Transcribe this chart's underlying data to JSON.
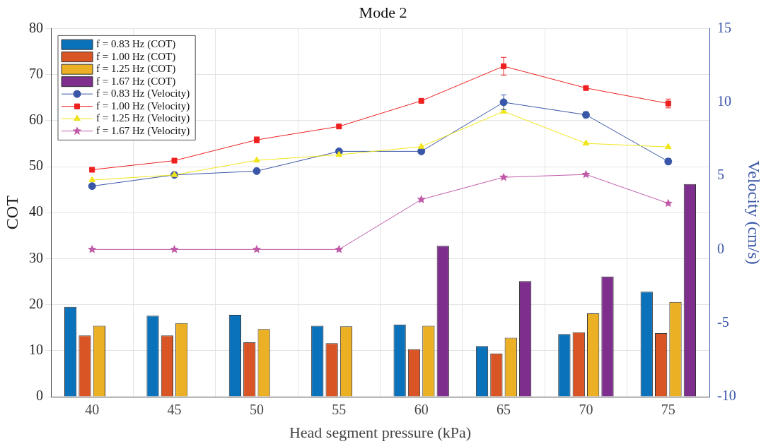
{
  "chart_data": {
    "type": "bar",
    "title": "Mode 2",
    "xlabel": "Head segment pressure (kPa)",
    "ylabel": "COT",
    "y2label": "Velocity (cm/s)",
    "categories": [
      "40",
      "45",
      "50",
      "55",
      "60",
      "65",
      "70",
      "75"
    ],
    "series": [
      {
        "name": "f = 0.83 Hz (COT)",
        "color": "#0a72ba",
        "values": [
          19.5,
          17.6,
          17.8,
          15.4,
          15.7,
          11.0,
          13.6,
          22.8
        ]
      },
      {
        "name": "f = 1.00 Hz (COT)",
        "color": "#d95525",
        "values": [
          13.3,
          13.3,
          11.8,
          11.6,
          10.3,
          9.4,
          14.0,
          13.8
        ]
      },
      {
        "name": "f = 1.25 Hz (COT)",
        "color": "#ebb023",
        "values": [
          15.4,
          16.0,
          14.7,
          15.3,
          15.4,
          12.8,
          18.1,
          20.6
        ]
      },
      {
        "name": "f = 1.67 Hz (COT)",
        "color": "#7e2f8e",
        "values": [
          0,
          0,
          0,
          0,
          32.8,
          25.1,
          26.1,
          46.2
        ]
      },
      {
        "name": "f = 0.83 Hz (Velocity)",
        "type": "line",
        "axis": "y2",
        "marker": "circle",
        "color": "#3a56a8",
        "values": [
          4.3,
          5.06,
          5.32,
          6.66,
          6.66,
          9.99,
          9.14,
          5.97
        ],
        "errors": [
          null,
          null,
          null,
          null,
          null,
          0.5,
          0.2,
          0.2
        ]
      },
      {
        "name": "f = 1.00 Hz (Velocity)",
        "type": "line",
        "axis": "y2",
        "marker": "square",
        "color": "#ee2020",
        "values": [
          5.41,
          6.03,
          7.44,
          8.35,
          10.09,
          12.44,
          10.96,
          9.91
        ],
        "errors": [
          null,
          null,
          0.2,
          null,
          null,
          0.6,
          null,
          0.3
        ]
      },
      {
        "name": "f = 1.25 Hz (Velocity)",
        "type": "line",
        "axis": "y2",
        "marker": "triangle",
        "color": "#f0e61a",
        "values": [
          4.71,
          5.06,
          6.05,
          6.43,
          6.98,
          9.37,
          7.2,
          6.96
        ]
      },
      {
        "name": "f = 1.67 Hz (Velocity)",
        "type": "line",
        "axis": "y2",
        "marker": "star",
        "color": "#c05aa8",
        "values": [
          0,
          0,
          0,
          0,
          3.39,
          4.9,
          5.09,
          3.13
        ]
      }
    ],
    "ylim": [
      0,
      80
    ],
    "yticks": [
      0,
      10,
      20,
      30,
      40,
      50,
      60,
      70,
      80
    ],
    "y2lim": [
      -10,
      15
    ],
    "y2ticks": [
      -10,
      -5,
      0,
      5,
      10,
      15
    ],
    "grid": true,
    "legend": "top left"
  }
}
